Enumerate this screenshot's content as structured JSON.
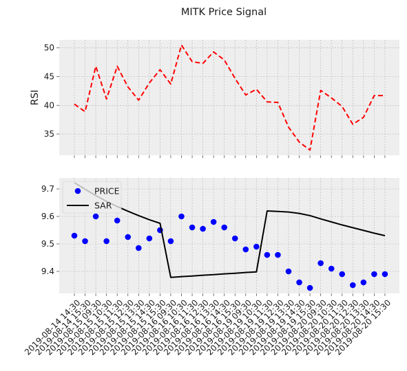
{
  "chart_data": {
    "type": "line",
    "title": "MITK Price Signal",
    "x": [
      "2019-08-14 14:30",
      "2019-08-14 15:30",
      "2019-08-15 09:30",
      "2019-08-15 10:30",
      "2019-08-15 11:30",
      "2019-08-15 12:30",
      "2019-08-15 13:30",
      "2019-08-15 14:30",
      "2019-08-15 15:30",
      "2019-08-16 09:30",
      "2019-08-16 10:30",
      "2019-08-16 11:30",
      "2019-08-16 12:30",
      "2019-08-16 13:30",
      "2019-08-16 14:30",
      "2019-08-16 15:30",
      "2019-08-19 09:30",
      "2019-08-19 10:30",
      "2019-08-19 11:30",
      "2019-08-19 12:30",
      "2019-08-19 13:30",
      "2019-08-19 14:30",
      "2019-08-19 15:30",
      "2019-08-20 09:30",
      "2019-08-20 10:30",
      "2019-08-20 11:30",
      "2019-08-20 12:30",
      "2019-08-20 13:30",
      "2019-08-20 14:30",
      "2019-08-20 15:30"
    ],
    "panels": [
      {
        "ylabel": "RSI",
        "ylim": [
          31.3,
          51.4
        ],
        "yticks": [
          35,
          40,
          45,
          50
        ],
        "grid": true,
        "series": [
          {
            "name": "",
            "style": "dashed-line",
            "color": "#ff0000",
            "values": [
              40.2,
              38.9,
              46.8,
              41.1,
              46.8,
              43.2,
              40.9,
              43.9,
              46.2,
              43.7,
              50.5,
              47.6,
              47.3,
              49.3,
              47.9,
              44.7,
              41.8,
              42.8,
              40.6,
              40.5,
              36.2,
              33.6,
              32.2,
              42.6,
              41.3,
              39.8,
              36.7,
              37.9,
              41.7,
              41.7
            ]
          }
        ]
      },
      {
        "ylabel": "",
        "ylim": [
          9.32,
          9.74
        ],
        "yticks": [
          9.4,
          9.5,
          9.6,
          9.7
        ],
        "yticklabels": [
          "9.4",
          "9.5",
          "9.6",
          "9.7"
        ],
        "grid": true,
        "legend_position": "top-left",
        "series": [
          {
            "name": "PRICE",
            "style": "points",
            "color": "#0000ff",
            "values": [
              9.53,
              9.51,
              9.6,
              9.51,
              9.585,
              9.525,
              9.485,
              9.52,
              9.55,
              9.51,
              9.6,
              9.56,
              9.555,
              9.58,
              9.56,
              9.52,
              9.48,
              9.49,
              9.46,
              9.46,
              9.4,
              9.36,
              9.34,
              9.43,
              9.41,
              9.39,
              9.35,
              9.36,
              9.39,
              9.39
            ]
          },
          {
            "name": "SAR",
            "style": "solid-line",
            "color": "#000000",
            "values": [
              9.723,
              9.699,
              9.676,
              9.655,
              9.636,
              9.619,
              9.603,
              9.588,
              9.575,
              9.378,
              9.381,
              9.383,
              9.386,
              9.388,
              9.391,
              9.393,
              9.396,
              9.398,
              9.62,
              9.618,
              9.616,
              9.611,
              9.603,
              9.591,
              9.58,
              9.569,
              9.559,
              9.549,
              9.539,
              9.53
            ]
          }
        ]
      }
    ]
  }
}
